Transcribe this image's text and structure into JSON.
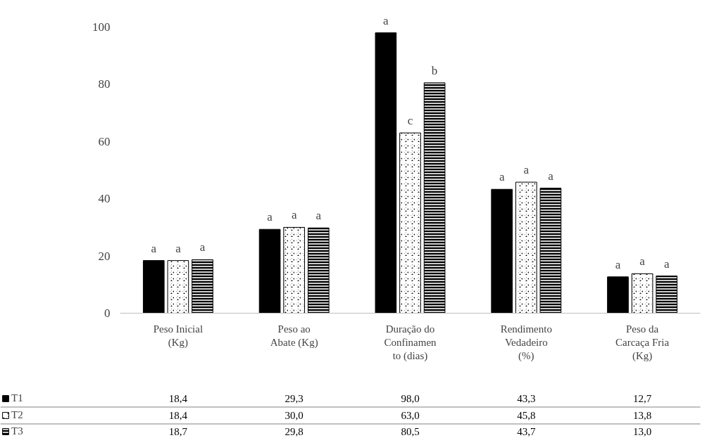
{
  "chart_data": {
    "type": "bar",
    "categories": [
      "Peso Inicial\n(Kg)",
      "Peso ao\nAbate (Kg)",
      "Duração do\nConfinamen\nto (dias)",
      "Rendimento\nVedadeiro\n(%)",
      "Peso da\nCarcaça Fria\n(Kg)"
    ],
    "series": [
      {
        "name": "T1",
        "color": "#000000",
        "values": [
          18.4,
          29.3,
          98.0,
          43.3,
          12.7
        ],
        "value_labels": [
          "18,4",
          "29,3",
          "98,0",
          "43,3",
          "12,7"
        ]
      },
      {
        "name": "T2",
        "color": "#000000",
        "values": [
          18.4,
          30.0,
          63.0,
          45.8,
          13.8
        ],
        "value_labels": [
          "18,4",
          "30,0",
          "63,0",
          "45,8",
          "13,8"
        ]
      },
      {
        "name": "T3",
        "color": "#000000",
        "values": [
          18.7,
          29.8,
          80.5,
          43.7,
          13.0
        ],
        "value_labels": [
          "18,7",
          "29,8",
          "80,5",
          "43,7",
          "13,0"
        ]
      }
    ],
    "ylim": [
      0,
      100
    ],
    "yticks": [
      0,
      20,
      40,
      60,
      80,
      100
    ],
    "grid": false,
    "legend": "bottom",
    "annotations": [
      "a",
      "a",
      "a",
      "a",
      "a",
      "a",
      "a",
      "c",
      "b",
      "a",
      "a",
      "a",
      "a",
      "a",
      "a"
    ]
  }
}
